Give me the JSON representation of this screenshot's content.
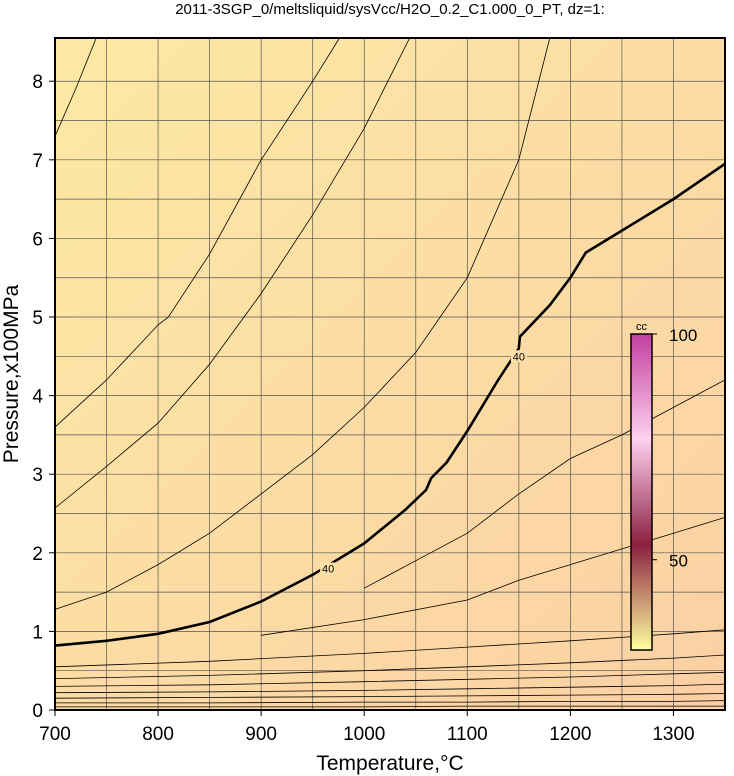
{
  "chart_data": {
    "type": "contour",
    "title": "2011-3SGP_0/meltsliquid/sysVcc/H2O_0.2_C1.000_0_PT, dz=1:",
    "x_label": "Temperature,°C",
    "y_label": "Pressure,x100MPa",
    "xlim": [
      700,
      1350
    ],
    "ylim": [
      0,
      8.55
    ],
    "xticks": [
      700,
      800,
      900,
      1000,
      1100,
      1200,
      1300
    ],
    "yticks": [
      0,
      1,
      2,
      3,
      4,
      5,
      6,
      7,
      8
    ],
    "xgrid": [
      750,
      800,
      850,
      900,
      950,
      1000,
      1050,
      1100,
      1150,
      1200,
      1250,
      1300
    ],
    "ygrid": [
      0.5,
      1,
      1.5,
      2,
      2.5,
      3,
      3.5,
      4,
      4.5,
      5,
      5.5,
      6,
      6.5,
      7,
      7.5,
      8
    ],
    "grid": true,
    "contours": [
      {
        "level": 40,
        "bold": true,
        "x": [
          700,
          750,
          800,
          850,
          900,
          950,
          1000,
          1040,
          1060,
          1065,
          1080,
          1100,
          1130,
          1150,
          1151,
          1180,
          1200,
          1215,
          1250,
          1300,
          1350
        ],
        "y": [
          0.82,
          0.88,
          0.97,
          1.12,
          1.38,
          1.72,
          2.12,
          2.55,
          2.8,
          2.95,
          3.15,
          3.55,
          4.2,
          4.6,
          4.75,
          5.15,
          5.5,
          5.82,
          6.1,
          6.5,
          6.95
        ],
        "label_x": [
          965,
          1150
        ],
        "label_y": [
          1.8,
          4.5
        ]
      },
      {
        "x": [
          700,
          720,
          740
        ],
        "y": [
          7.3,
          7.9,
          8.55
        ]
      },
      {
        "x": [
          700,
          750,
          800,
          810,
          850,
          900,
          950,
          976
        ],
        "y": [
          3.6,
          4.2,
          4.9,
          5.0,
          5.8,
          7.0,
          8.0,
          8.55
        ]
      },
      {
        "x": [
          700,
          750,
          800,
          850,
          900,
          950,
          1000,
          1044
        ],
        "y": [
          2.57,
          3.1,
          3.65,
          4.4,
          5.3,
          6.3,
          7.4,
          8.55
        ]
      },
      {
        "x": [
          700,
          750,
          800,
          850,
          900,
          950,
          1000,
          1050,
          1100,
          1150,
          1180
        ],
        "y": [
          1.28,
          1.5,
          1.85,
          2.25,
          2.75,
          3.25,
          3.85,
          4.55,
          5.5,
          7.0,
          8.55
        ]
      },
      {
        "x": [
          1000,
          1050,
          1100,
          1150,
          1200,
          1250,
          1300,
          1350
        ],
        "y": [
          1.55,
          1.9,
          2.25,
          2.75,
          3.2,
          3.5,
          3.85,
          4.2
        ]
      },
      {
        "x": [
          900,
          1000,
          1100,
          1150,
          1200,
          1250,
          1300,
          1350
        ],
        "y": [
          0.95,
          1.15,
          1.4,
          1.65,
          1.85,
          2.05,
          2.25,
          2.45
        ]
      },
      {
        "x": [
          700,
          850,
          1000,
          1100,
          1200,
          1300,
          1350
        ],
        "y": [
          0.55,
          0.62,
          0.72,
          0.8,
          0.88,
          0.97,
          1.02
        ]
      },
      {
        "x": [
          700,
          850,
          1000,
          1100,
          1200,
          1300,
          1350
        ],
        "y": [
          0.4,
          0.44,
          0.5,
          0.55,
          0.6,
          0.66,
          0.7
        ]
      },
      {
        "x": [
          700,
          850,
          1000,
          1100,
          1200,
          1300,
          1350
        ],
        "y": [
          0.3,
          0.32,
          0.36,
          0.39,
          0.42,
          0.46,
          0.48
        ]
      },
      {
        "x": [
          700,
          850,
          1000,
          1100,
          1200,
          1300,
          1350
        ],
        "y": [
          0.22,
          0.23,
          0.25,
          0.27,
          0.29,
          0.31,
          0.33
        ]
      },
      {
        "x": [
          700,
          850,
          1000,
          1100,
          1200,
          1300,
          1350
        ],
        "y": [
          0.15,
          0.16,
          0.17,
          0.18,
          0.19,
          0.2,
          0.21
        ]
      },
      {
        "x": [
          700,
          850,
          1000,
          1100,
          1200,
          1300,
          1350
        ],
        "y": [
          0.09,
          0.09,
          0.1,
          0.1,
          0.11,
          0.11,
          0.12
        ]
      },
      {
        "x": [
          700,
          850,
          1000,
          1100,
          1200,
          1300,
          1350
        ],
        "y": [
          0.04,
          0.04,
          0.04,
          0.05,
          0.05,
          0.05,
          0.05
        ]
      }
    ],
    "colorbar": {
      "label": "cc",
      "lim": [
        30,
        100
      ],
      "ticks": [
        50,
        100
      ],
      "colors": [
        "#ffffa0",
        "#8a2040",
        "#ffd0f0",
        "#c040a0"
      ]
    }
  }
}
